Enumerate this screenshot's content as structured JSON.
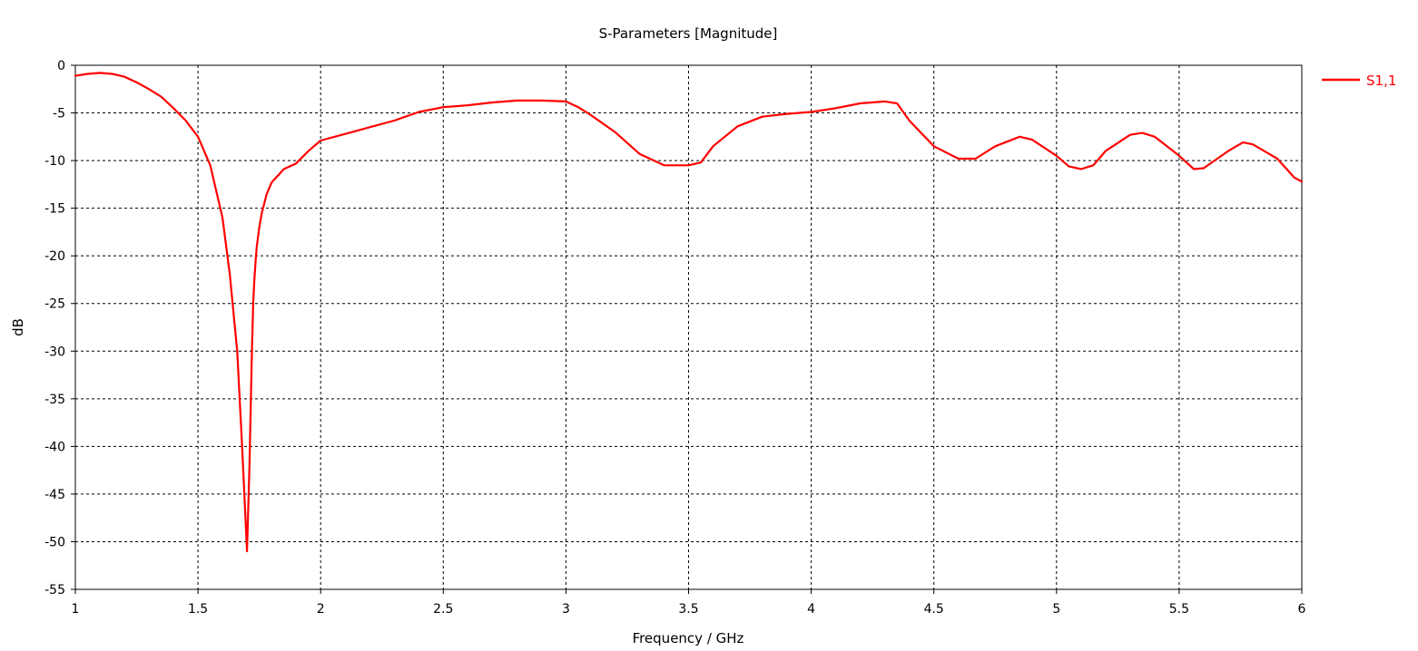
{
  "chart_data": {
    "type": "line",
    "title": "S-Parameters [Magnitude]",
    "xlabel": "Frequency / GHz",
    "ylabel": "dB",
    "xlim": [
      1,
      6
    ],
    "ylim": [
      -55,
      0
    ],
    "xticks": [
      1,
      1.5,
      2,
      2.5,
      3,
      3.5,
      4,
      4.5,
      5,
      5.5,
      6
    ],
    "xtick_labels": [
      "1",
      "1.5",
      "2",
      "2.5",
      "3",
      "3.5",
      "4",
      "4.5",
      "5",
      "5.5",
      "6"
    ],
    "yticks": [
      0,
      -5,
      -10,
      -15,
      -20,
      -25,
      -30,
      -35,
      -40,
      -45,
      -50,
      -55
    ],
    "ytick_labels": [
      "0",
      "-5",
      "-10",
      "-15",
      "-20",
      "-25",
      "-30",
      "-35",
      "-40",
      "-45",
      "-50",
      "-55"
    ],
    "grid": true,
    "legend_position": "top-right-outside",
    "series": [
      {
        "name": "S1,1",
        "color": "#ff0000",
        "x": [
          1.0,
          1.05,
          1.1,
          1.15,
          1.2,
          1.25,
          1.3,
          1.35,
          1.4,
          1.45,
          1.5,
          1.55,
          1.6,
          1.63,
          1.66,
          1.68,
          1.7,
          1.71,
          1.72,
          1.725,
          1.73,
          1.735,
          1.74,
          1.75,
          1.76,
          1.78,
          1.8,
          1.85,
          1.9,
          1.95,
          2.0,
          2.1,
          2.2,
          2.3,
          2.4,
          2.5,
          2.6,
          2.7,
          2.8,
          2.9,
          3.0,
          3.05,
          3.1,
          3.2,
          3.3,
          3.4,
          3.5,
          3.55,
          3.6,
          3.7,
          3.8,
          3.9,
          4.0,
          4.1,
          4.2,
          4.3,
          4.35,
          4.4,
          4.5,
          4.6,
          4.67,
          4.75,
          4.85,
          4.9,
          5.0,
          5.05,
          5.1,
          5.15,
          5.2,
          5.3,
          5.35,
          5.4,
          5.5,
          5.56,
          5.6,
          5.7,
          5.76,
          5.8,
          5.9,
          5.97,
          6.0
        ],
        "y": [
          -1.1,
          -0.9,
          -0.8,
          -0.9,
          -1.2,
          -1.8,
          -2.5,
          -3.3,
          -4.5,
          -5.8,
          -7.5,
          -10.5,
          -16.0,
          -22.0,
          -30.0,
          -40.0,
          -51.0,
          -42.0,
          -30.0,
          -25.0,
          -22.5,
          -20.5,
          -19.0,
          -17.0,
          -15.5,
          -13.5,
          -12.3,
          -10.9,
          -10.3,
          -9.0,
          -7.9,
          -7.2,
          -6.5,
          -5.8,
          -4.9,
          -4.4,
          -4.2,
          -3.9,
          -3.7,
          -3.7,
          -3.8,
          -4.4,
          -5.2,
          -7.0,
          -9.3,
          -10.5,
          -10.5,
          -10.2,
          -8.5,
          -6.4,
          -5.4,
          -5.1,
          -4.9,
          -4.5,
          -4.0,
          -3.8,
          -4.0,
          -5.8,
          -8.5,
          -9.8,
          -9.8,
          -8.5,
          -7.5,
          -7.8,
          -9.5,
          -10.6,
          -10.9,
          -10.5,
          -9.0,
          -7.3,
          -7.1,
          -7.5,
          -9.5,
          -10.9,
          -10.8,
          -9.0,
          -8.1,
          -8.3,
          -9.8,
          -11.8,
          -12.2
        ]
      }
    ]
  }
}
